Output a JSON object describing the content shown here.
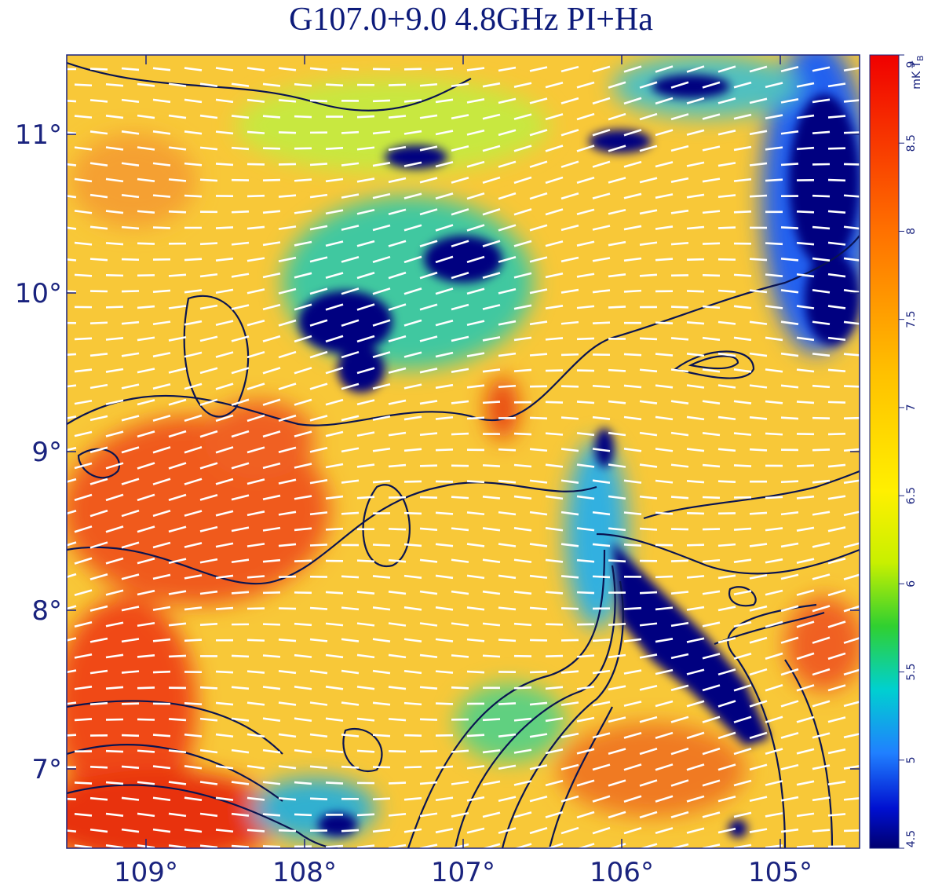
{
  "chart_data": {
    "type": "map",
    "title": "G107.0+9.0 4.8GHz PI+Ha",
    "xlim": [
      109.5,
      104.5
    ],
    "xticks": [
      {
        "value": 109,
        "label": "109°"
      },
      {
        "value": 108,
        "label": "108°"
      },
      {
        "value": 107,
        "label": "107°"
      },
      {
        "value": 106,
        "label": "106°"
      },
      {
        "value": 105,
        "label": "105°"
      }
    ],
    "ylim": [
      6.5,
      11.5
    ],
    "yticks": [
      {
        "value": 7,
        "label": "7°"
      },
      {
        "value": 8,
        "label": "8°"
      },
      {
        "value": 9,
        "label": "9°"
      },
      {
        "value": 10,
        "label": "10°"
      },
      {
        "value": 11,
        "label": "11°"
      }
    ],
    "colorbar_lim": [
      4.5,
      9
    ],
    "colorbar_ticks": [
      4.5,
      5,
      5.5,
      6,
      6.5,
      7,
      7.5,
      8,
      8.5,
      9
    ],
    "colorbar_label": "mK T",
    "colorbar_label_sub": "B"
  }
}
